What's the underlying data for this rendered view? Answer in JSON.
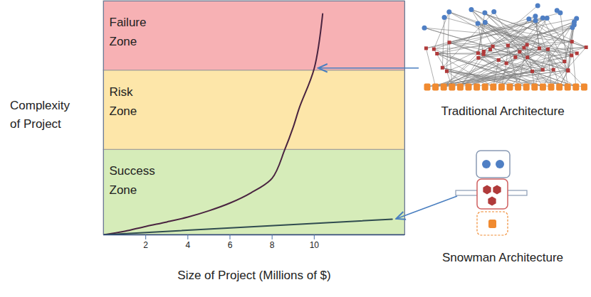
{
  "chart_data": {
    "type": "line",
    "x_label": "Size of Project (Millions of $)",
    "y_label": "Complexity of Project",
    "xlim": [
      0,
      14.3
    ],
    "xticks": [
      2,
      4,
      6,
      8,
      10
    ],
    "ylim": [
      0,
      100
    ],
    "tick_labels": "x",
    "grid": false,
    "zones": [
      {
        "label": "Success Zone",
        "from": 0,
        "to": 36.4,
        "color": "#d6ecb9"
      },
      {
        "label": "Risk Zone",
        "from": 36.4,
        "to": 70.3,
        "color": "#fde6a9"
      },
      {
        "label": "Failure Zone",
        "from": 70.3,
        "to": 100,
        "color": "#f7b1b4"
      }
    ],
    "series": [
      {
        "name": "Traditional Architecture",
        "color": "#4a2440",
        "x": [
          0,
          1,
          2,
          3,
          4,
          5,
          6,
          7,
          8,
          8.6,
          9,
          9.3,
          10,
          10.4
        ],
        "values": [
          0,
          1.5,
          3.6,
          5.5,
          7.6,
          10.3,
          13.6,
          18,
          24.2,
          36.4,
          46,
          54.5,
          71.2,
          94.5
        ]
      },
      {
        "name": "Snowman Architecture",
        "color": "#2f4b4f",
        "x": [
          0,
          13.7
        ],
        "values": [
          0,
          6.7
        ]
      }
    ]
  }
}
